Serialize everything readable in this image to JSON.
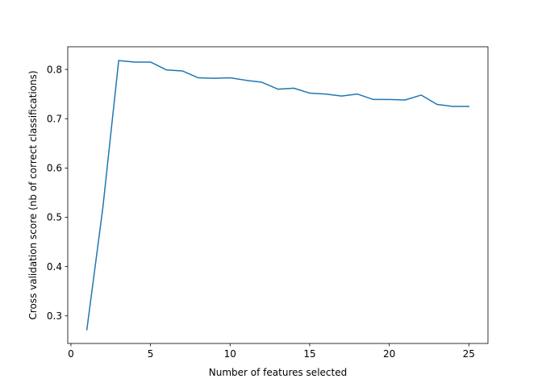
{
  "chart_data": {
    "type": "line",
    "title": "",
    "xlabel": "Number of features selected",
    "ylabel": "Cross validation score (nb of correct classifications)",
    "xlim": [
      -0.2,
      26.2
    ],
    "ylim": [
      0.244,
      0.846
    ],
    "xticks": [
      0,
      5,
      10,
      15,
      20,
      25
    ],
    "yticks": [
      0.3,
      0.4,
      0.5,
      0.6,
      0.7,
      0.8
    ],
    "xtick_labels": [
      "0",
      "5",
      "10",
      "15",
      "20",
      "25"
    ],
    "ytick_labels": [
      "0.3",
      "0.4",
      "0.5",
      "0.6",
      "0.7",
      "0.8"
    ],
    "grid": false,
    "legend": null,
    "series": [
      {
        "color": "#1f77b4",
        "x": [
          1,
          2,
          3,
          4,
          5,
          6,
          7,
          8,
          9,
          10,
          11,
          12,
          13,
          14,
          15,
          16,
          17,
          18,
          19,
          20,
          21,
          22,
          23,
          24,
          25
        ],
        "y": [
          0.272,
          0.518,
          0.818,
          0.815,
          0.815,
          0.799,
          0.797,
          0.783,
          0.782,
          0.783,
          0.778,
          0.774,
          0.76,
          0.762,
          0.752,
          0.75,
          0.746,
          0.75,
          0.739,
          0.739,
          0.738,
          0.748,
          0.729,
          0.725,
          0.725
        ]
      }
    ]
  }
}
